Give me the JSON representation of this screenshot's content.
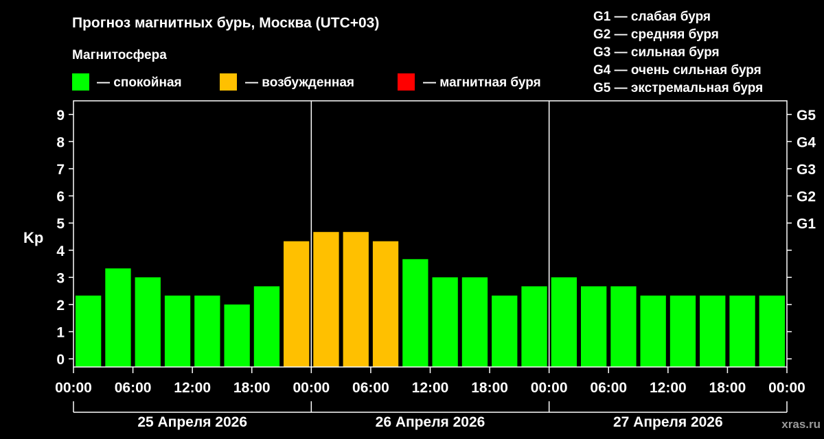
{
  "title": "Прогноз магнитных бурь, Москва (UTC+03)",
  "legend": {
    "heading": "Магнитосфера",
    "items": [
      {
        "label": "— спокойная",
        "color": "#00ff00"
      },
      {
        "label": "— возбужденная",
        "color": "#ffc000"
      },
      {
        "label": "— магнитная буря",
        "color": "#ff0000"
      }
    ]
  },
  "storm_scale": [
    "G1 — слабая буря",
    "G2 — средняя буря",
    "G3 — сильная буря",
    "G4 — очень сильная буря",
    "G5 — экстремальная буря"
  ],
  "watermark": "xras.ru",
  "chart_data": {
    "type": "bar",
    "ylabel": "Kp",
    "ylim": [
      -0.3,
      9.5
    ],
    "yticks": [
      0,
      1,
      2,
      3,
      4,
      5,
      6,
      7,
      8,
      9
    ],
    "right_ticks": [
      {
        "value": 5,
        "label": "G1"
      },
      {
        "value": 6,
        "label": "G2"
      },
      {
        "value": 7,
        "label": "G3"
      },
      {
        "value": 8,
        "label": "G4"
      },
      {
        "value": 9,
        "label": "G5"
      }
    ],
    "xtick_labels": [
      "00:00",
      "06:00",
      "12:00",
      "18:00",
      "00:00",
      "06:00",
      "12:00",
      "18:00",
      "00:00",
      "06:00",
      "12:00",
      "18:00",
      "00:00"
    ],
    "days": [
      "25 Апреля 2026",
      "26 Апреля 2026",
      "27 Апреля 2026"
    ],
    "bars_per_day": 8,
    "values": [
      2.33,
      3.33,
      3.0,
      2.33,
      2.33,
      2.0,
      2.67,
      4.33,
      4.67,
      4.67,
      4.33,
      3.67,
      3.0,
      3.0,
      2.33,
      2.67,
      3.0,
      2.67,
      2.67,
      2.33,
      2.33,
      2.33,
      2.33,
      2.33
    ],
    "levels": [
      "quiet",
      "quiet",
      "quiet",
      "quiet",
      "quiet",
      "quiet",
      "quiet",
      "active",
      "active",
      "active",
      "active",
      "quiet",
      "quiet",
      "quiet",
      "quiet",
      "quiet",
      "quiet",
      "quiet",
      "quiet",
      "quiet",
      "quiet",
      "quiet",
      "quiet",
      "quiet"
    ],
    "level_colors": {
      "quiet": "#00ff00",
      "active": "#ffc000",
      "storm": "#ff0000"
    },
    "grid": false
  }
}
